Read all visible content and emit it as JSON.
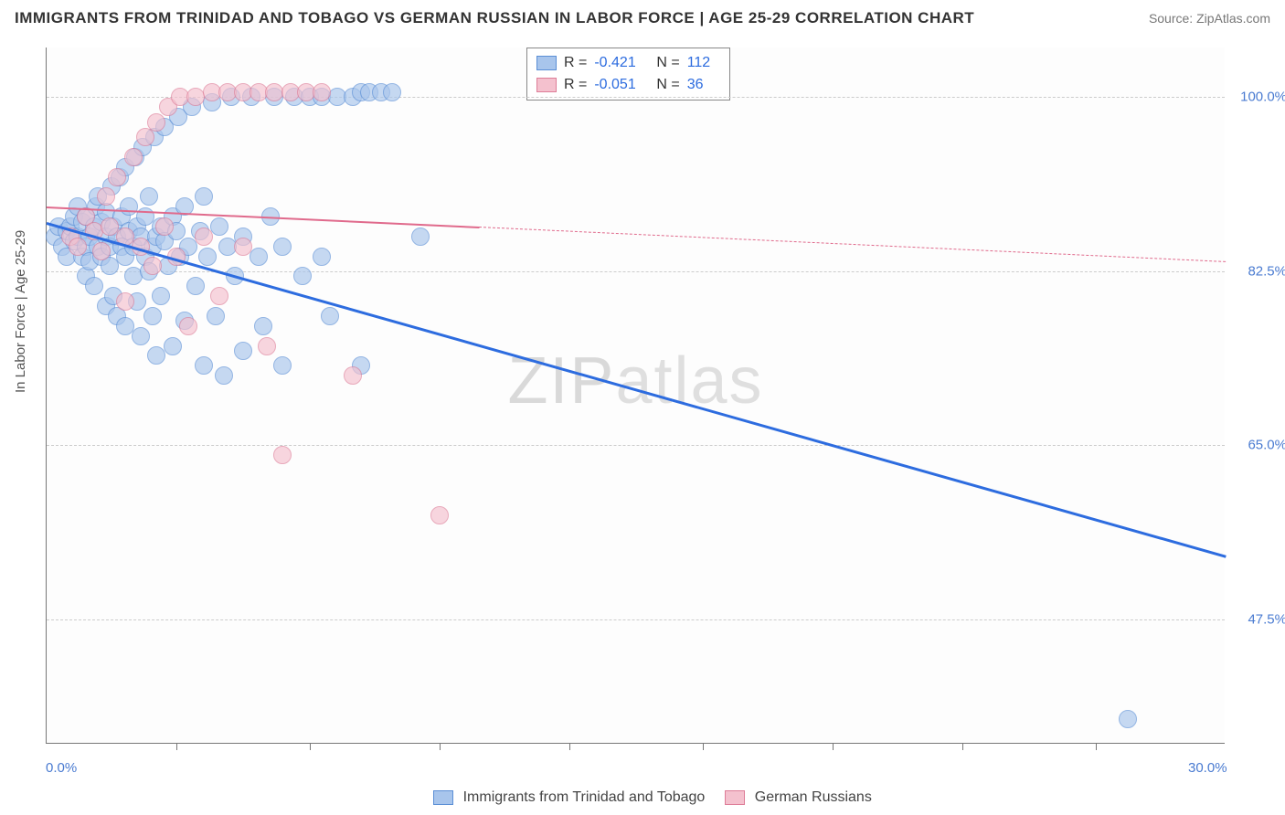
{
  "title": "IMMIGRANTS FROM TRINIDAD AND TOBAGO VS GERMAN RUSSIAN IN LABOR FORCE | AGE 25-29 CORRELATION CHART",
  "source": "Source: ZipAtlas.com",
  "watermark_a": "ZIP",
  "watermark_b": "atlas",
  "chart": {
    "type": "scatter",
    "ylabel": "In Labor Force | Age 25-29",
    "xlim": [
      0,
      30
    ],
    "ylim": [
      35,
      105
    ],
    "x_ticks_minor": [
      3.3,
      6.7,
      10,
      13.3,
      16.7,
      20,
      23.3,
      26.7
    ],
    "x_ticks_label": [
      {
        "v": 0,
        "t": "0.0%"
      },
      {
        "v": 30,
        "t": "30.0%"
      }
    ],
    "y_ticks": [
      {
        "v": 47.5,
        "t": "47.5%"
      },
      {
        "v": 65.0,
        "t": "65.0%"
      },
      {
        "v": 82.5,
        "t": "82.5%"
      },
      {
        "v": 100.0,
        "t": "100.0%"
      }
    ],
    "grid_color": "#cccccc",
    "background_color": "#fdfdfd",
    "marker_radius": 10,
    "series": [
      {
        "name": "Immigrants from Trinidad and Tobago",
        "fill": "#a8c5ec",
        "stroke": "#5b8fd6",
        "r_value": "-0.421",
        "n_value": "112",
        "trend": {
          "x1": 0,
          "y1": 87.5,
          "x2": 30,
          "y2": 54,
          "solid_until_x": 30,
          "color": "#2d6cdf",
          "width": 2.5
        },
        "points": [
          [
            0.2,
            86
          ],
          [
            0.3,
            87
          ],
          [
            0.4,
            85
          ],
          [
            0.5,
            86.5
          ],
          [
            0.5,
            84
          ],
          [
            0.6,
            87
          ],
          [
            0.7,
            85.5
          ],
          [
            0.7,
            88
          ],
          [
            0.8,
            86
          ],
          [
            0.8,
            89
          ],
          [
            0.9,
            84
          ],
          [
            0.9,
            87.5
          ],
          [
            1.0,
            85
          ],
          [
            1.0,
            82
          ],
          [
            1.0,
            88
          ],
          [
            1.1,
            86
          ],
          [
            1.1,
            83.5
          ],
          [
            1.2,
            87
          ],
          [
            1.2,
            81
          ],
          [
            1.25,
            89
          ],
          [
            1.3,
            85
          ],
          [
            1.3,
            90
          ],
          [
            1.4,
            84
          ],
          [
            1.4,
            87.5
          ],
          [
            1.5,
            86
          ],
          [
            1.5,
            79
          ],
          [
            1.5,
            88.5
          ],
          [
            1.6,
            85
          ],
          [
            1.6,
            83
          ],
          [
            1.65,
            91
          ],
          [
            1.7,
            87
          ],
          [
            1.7,
            80
          ],
          [
            1.8,
            86
          ],
          [
            1.8,
            78
          ],
          [
            1.85,
            92
          ],
          [
            1.9,
            85
          ],
          [
            1.9,
            88
          ],
          [
            2.0,
            84
          ],
          [
            2.0,
            77
          ],
          [
            2.0,
            93
          ],
          [
            2.1,
            86.5
          ],
          [
            2.1,
            89
          ],
          [
            2.2,
            82
          ],
          [
            2.2,
            85
          ],
          [
            2.25,
            94
          ],
          [
            2.3,
            87
          ],
          [
            2.3,
            79.5
          ],
          [
            2.4,
            86
          ],
          [
            2.4,
            76
          ],
          [
            2.45,
            95
          ],
          [
            2.5,
            84
          ],
          [
            2.5,
            88
          ],
          [
            2.6,
            82.5
          ],
          [
            2.6,
            90
          ],
          [
            2.7,
            85
          ],
          [
            2.7,
            78
          ],
          [
            2.75,
            96
          ],
          [
            2.8,
            86
          ],
          [
            2.8,
            74
          ],
          [
            2.9,
            87
          ],
          [
            2.9,
            80
          ],
          [
            3.0,
            85.5
          ],
          [
            3.0,
            97
          ],
          [
            3.1,
            83
          ],
          [
            3.2,
            88
          ],
          [
            3.2,
            75
          ],
          [
            3.3,
            86.5
          ],
          [
            3.35,
            98
          ],
          [
            3.4,
            84
          ],
          [
            3.5,
            77.5
          ],
          [
            3.5,
            89
          ],
          [
            3.6,
            85
          ],
          [
            3.7,
            99
          ],
          [
            3.8,
            81
          ],
          [
            3.9,
            86.5
          ],
          [
            4.0,
            73
          ],
          [
            4.0,
            90
          ],
          [
            4.1,
            84
          ],
          [
            4.2,
            99.5
          ],
          [
            4.3,
            78
          ],
          [
            4.4,
            87
          ],
          [
            4.5,
            72
          ],
          [
            4.6,
            85
          ],
          [
            4.7,
            100
          ],
          [
            4.8,
            82
          ],
          [
            5.0,
            86
          ],
          [
            5.0,
            74.5
          ],
          [
            5.2,
            100
          ],
          [
            5.4,
            84
          ],
          [
            5.5,
            77
          ],
          [
            5.7,
            88
          ],
          [
            5.8,
            100
          ],
          [
            6.0,
            85
          ],
          [
            6.0,
            73
          ],
          [
            6.3,
            100
          ],
          [
            6.5,
            82
          ],
          [
            6.7,
            100
          ],
          [
            7.0,
            100
          ],
          [
            7.0,
            84
          ],
          [
            7.2,
            78
          ],
          [
            7.4,
            100
          ],
          [
            7.8,
            100
          ],
          [
            8.0,
            100.5
          ],
          [
            8.0,
            73
          ],
          [
            8.2,
            100.5
          ],
          [
            8.5,
            100.5
          ],
          [
            8.8,
            100.5
          ],
          [
            9.5,
            86
          ],
          [
            27.5,
            37.5
          ]
        ]
      },
      {
        "name": "German Russians",
        "fill": "#f4c1ce",
        "stroke": "#de7d98",
        "r_value": "-0.051",
        "n_value": "36",
        "trend": {
          "x1": 0,
          "y1": 89,
          "x2": 30,
          "y2": 83.5,
          "solid_until_x": 11,
          "color": "#e06a8c",
          "width": 2
        },
        "points": [
          [
            0.6,
            86
          ],
          [
            0.8,
            85
          ],
          [
            1.0,
            88
          ],
          [
            1.2,
            86.5
          ],
          [
            1.4,
            84.5
          ],
          [
            1.5,
            90
          ],
          [
            1.6,
            87
          ],
          [
            1.8,
            92
          ],
          [
            2.0,
            86
          ],
          [
            2.0,
            79.5
          ],
          [
            2.2,
            94
          ],
          [
            2.4,
            85
          ],
          [
            2.5,
            96
          ],
          [
            2.7,
            83
          ],
          [
            2.8,
            97.5
          ],
          [
            3.0,
            87
          ],
          [
            3.1,
            99
          ],
          [
            3.3,
            84
          ],
          [
            3.4,
            100
          ],
          [
            3.6,
            77
          ],
          [
            3.8,
            100
          ],
          [
            4.0,
            86
          ],
          [
            4.2,
            100.5
          ],
          [
            4.4,
            80
          ],
          [
            4.6,
            100.5
          ],
          [
            5.0,
            100.5
          ],
          [
            5.0,
            85
          ],
          [
            5.4,
            100.5
          ],
          [
            5.6,
            75
          ],
          [
            5.8,
            100.5
          ],
          [
            6.0,
            64
          ],
          [
            6.2,
            100.5
          ],
          [
            6.6,
            100.5
          ],
          [
            7.0,
            100.5
          ],
          [
            7.8,
            72
          ],
          [
            10.0,
            58
          ]
        ]
      }
    ],
    "bottom_legend": [
      {
        "swatch_fill": "#a8c5ec",
        "swatch_stroke": "#5b8fd6",
        "label": "Immigrants from Trinidad and Tobago"
      },
      {
        "swatch_fill": "#f4c1ce",
        "swatch_stroke": "#de7d98",
        "label": "German Russians"
      }
    ]
  }
}
